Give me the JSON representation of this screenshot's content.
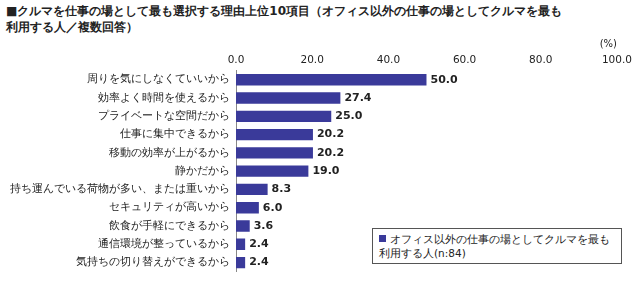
{
  "chart_data": {
    "type": "bar",
    "orientation": "horizontal",
    "title": "■クルマを仕事の場として最も選択する理由上位10項目（オフィス以外の仕事の場としてクルマを最も利用する人／複数回答）",
    "xlabel": "(%)",
    "categories": [
      "周りを気にしなくていいから",
      "効率よく時間を使えるから",
      "プライベートな空間だから",
      "仕事に集中できるから",
      "移動の効率が上がるから",
      "静かだから",
      "持ち運んでいる荷物が多い、または重いから",
      "セキュリティが高いから",
      "飲食が手軽にできるから",
      "通信環境が整っているから",
      "気持ちの切り替えができるから"
    ],
    "series": [
      {
        "name": "オフィス以外の仕事の場としてクルマを最も利用する人(n:84)",
        "color": "#3a3a9a",
        "values": [
          50.0,
          27.4,
          25.0,
          20.2,
          20.2,
          19.0,
          8.3,
          6.0,
          3.6,
          2.4,
          2.4
        ],
        "value_labels": [
          "50.0",
          "27.4",
          "25.0",
          "20.2",
          "20.2",
          "19.0",
          "8.3",
          "6.0",
          "3.6",
          "2.4",
          "2.4"
        ]
      }
    ],
    "xlim": [
      0,
      100
    ],
    "xticks": [
      {
        "value": 0,
        "label": "0.0"
      },
      {
        "value": 20,
        "label": "20.0"
      },
      {
        "value": 40,
        "label": "40.0"
      },
      {
        "value": 60,
        "label": "60.0"
      },
      {
        "value": 80,
        "label": "80.0"
      },
      {
        "value": 100,
        "label": "100.0"
      }
    ],
    "grid": false,
    "data_labels": true,
    "legend": "lower right"
  }
}
